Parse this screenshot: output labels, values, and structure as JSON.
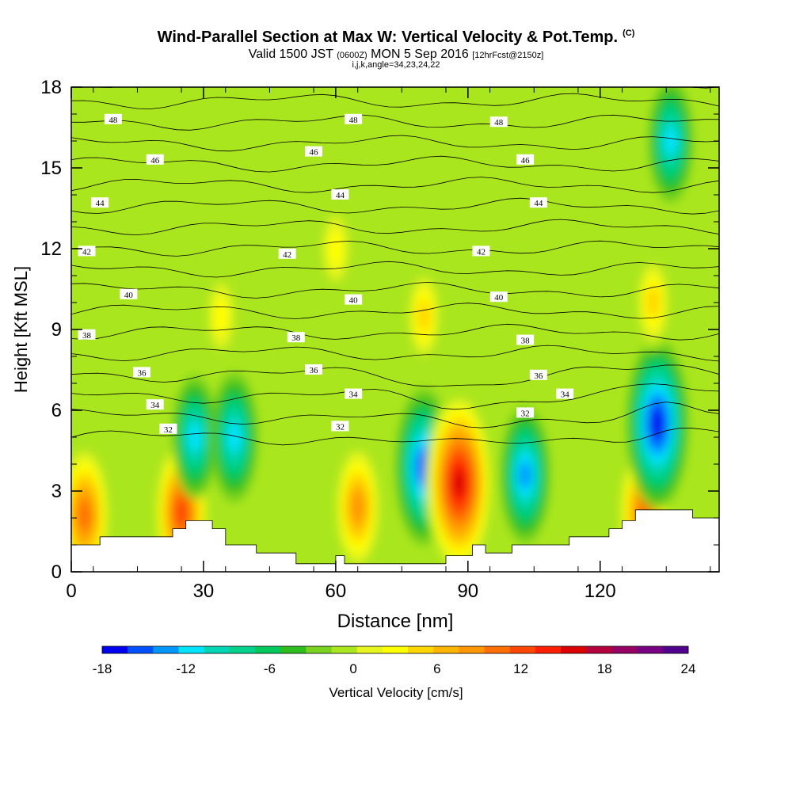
{
  "title": {
    "main": "Wind-Parallel Section at Max W: Vertical Velocity & Pot.Temp.",
    "copyright": "(C)",
    "valid_a": "Valid 1500 JST",
    "valid_b": "(0600Z)",
    "valid_c": "MON 5 Sep 2016",
    "valid_d": "[12hrFcst@2150z]",
    "indices": "i,j,k,angle=34,23,24,22"
  },
  "chart_data": {
    "type": "heatmap",
    "xlabel": "Distance [nm]",
    "ylabel": "Height [Kft MSL]",
    "xlim": [
      0,
      147
    ],
    "ylim": [
      0,
      18
    ],
    "xticks": [
      0,
      30,
      60,
      90,
      120
    ],
    "yticks": [
      0,
      3,
      6,
      9,
      12,
      15,
      18
    ],
    "grid": false,
    "colorbar": {
      "label": "Vertical Velocity [cm/s]",
      "placement": "bottom",
      "min": -18,
      "max": 24,
      "step": 2,
      "tick_labels": [
        "-18",
        "-12",
        "-6",
        "0",
        "6",
        "12",
        "18",
        "24"
      ],
      "colors": [
        "#0000f0",
        "#0050ff",
        "#0096ff",
        "#00e4ff",
        "#00d6b4",
        "#00d28c",
        "#00c85a",
        "#2dbe1e",
        "#78d21e",
        "#aae61e",
        "#e6f51e",
        "#ffff00",
        "#ffd700",
        "#ffb400",
        "#ff9600",
        "#ff6e00",
        "#ff4600",
        "#ff1e00",
        "#dc0000",
        "#b4003c",
        "#960064",
        "#780082",
        "#50008c"
      ]
    },
    "vertical_velocity_features": [
      {
        "x": 3,
        "y": 2.1,
        "w": 12,
        "desc": "updraft"
      },
      {
        "x": 25,
        "y": 2.2,
        "w": 13,
        "desc": "updraft"
      },
      {
        "x": 65,
        "y": 2.4,
        "w": 10,
        "desc": "updraft"
      },
      {
        "x": 80,
        "y": 3.9,
        "w": -14,
        "desc": "downdraft"
      },
      {
        "x": 88,
        "y": 3.3,
        "w": 18,
        "desc": "updraft"
      },
      {
        "x": 103,
        "y": 3.6,
        "w": -11,
        "desc": "downdraft"
      },
      {
        "x": 130,
        "y": 2.2,
        "w": 12,
        "desc": "updraft"
      },
      {
        "x": 133,
        "y": 5.5,
        "w": -16,
        "desc": "downdraft"
      },
      {
        "x": 28,
        "y": 5.0,
        "w": -9,
        "desc": "downdraft"
      },
      {
        "x": 37,
        "y": 5.0,
        "w": -10,
        "desc": "downdraft"
      },
      {
        "x": 34,
        "y": 9.5,
        "w": 4,
        "desc": "updraft"
      },
      {
        "x": 60,
        "y": 12.0,
        "w": 4,
        "desc": "updraft"
      },
      {
        "x": 80,
        "y": 9.5,
        "w": 5,
        "desc": "updraft"
      },
      {
        "x": 132,
        "y": 10.0,
        "w": 5,
        "desc": "updraft"
      },
      {
        "x": 136,
        "y": 16.0,
        "w": -9,
        "desc": "downdraft"
      }
    ],
    "potential_temperature_contours": {
      "levels": [
        32,
        33,
        34,
        35,
        36,
        37,
        38,
        39,
        40,
        41,
        42,
        43,
        44,
        45,
        46,
        47,
        48,
        49,
        50
      ],
      "labels": [
        {
          "text": "48",
          "x": 9.5,
          "y": 16.8
        },
        {
          "text": "48",
          "x": 64,
          "y": 16.8
        },
        {
          "text": "48",
          "x": 97,
          "y": 16.7
        },
        {
          "text": "46",
          "x": 19,
          "y": 15.3
        },
        {
          "text": "46",
          "x": 55,
          "y": 15.6
        },
        {
          "text": "46",
          "x": 103,
          "y": 15.3
        },
        {
          "text": "44",
          "x": 6.5,
          "y": 13.7
        },
        {
          "text": "44",
          "x": 61,
          "y": 14.0
        },
        {
          "text": "44",
          "x": 106,
          "y": 13.7
        },
        {
          "text": "42",
          "x": 3.5,
          "y": 11.9
        },
        {
          "text": "42",
          "x": 49,
          "y": 11.8
        },
        {
          "text": "42",
          "x": 93,
          "y": 11.9
        },
        {
          "text": "40",
          "x": 13,
          "y": 10.3
        },
        {
          "text": "40",
          "x": 64,
          "y": 10.1
        },
        {
          "text": "40",
          "x": 97,
          "y": 10.2
        },
        {
          "text": "38",
          "x": 3.5,
          "y": 8.8
        },
        {
          "text": "38",
          "x": 51,
          "y": 8.7
        },
        {
          "text": "38",
          "x": 103,
          "y": 8.6
        },
        {
          "text": "36",
          "x": 16,
          "y": 7.4
        },
        {
          "text": "36",
          "x": 55,
          "y": 7.5
        },
        {
          "text": "36",
          "x": 106,
          "y": 7.3
        },
        {
          "text": "34",
          "x": 19,
          "y": 6.2
        },
        {
          "text": "34",
          "x": 64,
          "y": 6.6
        },
        {
          "text": "34",
          "x": 112,
          "y": 6.6
        },
        {
          "text": "32",
          "x": 22,
          "y": 5.3
        },
        {
          "text": "32",
          "x": 61,
          "y": 5.4
        },
        {
          "text": "32",
          "x": 103,
          "y": 5.9
        }
      ]
    },
    "terrain_kft": [
      [
        0,
        1.0
      ],
      [
        6.5,
        1.0
      ],
      [
        6.5,
        1.3
      ],
      [
        23,
        1.3
      ],
      [
        23,
        1.6
      ],
      [
        26,
        1.6
      ],
      [
        26,
        1.9
      ],
      [
        32,
        1.9
      ],
      [
        32,
        1.6
      ],
      [
        35,
        1.6
      ],
      [
        35,
        1.0
      ],
      [
        42,
        1.0
      ],
      [
        42,
        0.7
      ],
      [
        51,
        0.7
      ],
      [
        51,
        0.3
      ],
      [
        60,
        0.3
      ],
      [
        60,
        0.6
      ],
      [
        62,
        0.6
      ],
      [
        62,
        0.3
      ],
      [
        85,
        0.3
      ],
      [
        85,
        0.6
      ],
      [
        91,
        0.6
      ],
      [
        91,
        1.0
      ],
      [
        94,
        1.0
      ],
      [
        94,
        0.7
      ],
      [
        100,
        0.7
      ],
      [
        100,
        1.0
      ],
      [
        113,
        1.0
      ],
      [
        113,
        1.3
      ],
      [
        122,
        1.3
      ],
      [
        122,
        1.6
      ],
      [
        125,
        1.6
      ],
      [
        125,
        1.9
      ],
      [
        128,
        1.9
      ],
      [
        128,
        2.3
      ],
      [
        141,
        2.3
      ],
      [
        141,
        2.0
      ],
      [
        147,
        2.0
      ]
    ]
  }
}
